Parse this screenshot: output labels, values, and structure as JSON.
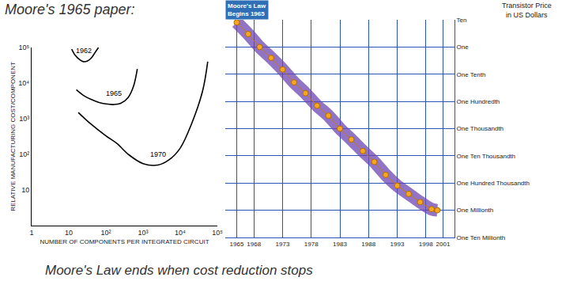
{
  "chart_data": [
    {
      "type": "line",
      "title": "Moore's 1965 paper:",
      "xlabel": "NUMBER OF COMPONENTS PER INTEGRATED CIRCUIT",
      "ylabel": "RELATIVE MANUFACTURING COST/COMPONENT",
      "log": true,
      "grid": false,
      "line_style": "solid",
      "xlim": [
        1,
        100000
      ],
      "ylim": [
        1,
        100000
      ],
      "xticks": [
        1,
        10,
        {
          "value": 100,
          "label": "10²"
        },
        {
          "value": 1000,
          "label": "10³"
        },
        {
          "value": 10000,
          "label": "10⁴"
        },
        {
          "value": 100000,
          "label": "10⁵"
        }
      ],
      "yticks": [
        10,
        {
          "value": 100,
          "label": "10²"
        },
        {
          "value": 1000,
          "label": "10³"
        },
        {
          "value": 10000,
          "label": "10⁴"
        },
        {
          "value": 100000,
          "label": "10⁵"
        }
      ],
      "series": [
        {
          "name": "1962",
          "color": "#000000",
          "x": [
            12,
            15,
            20,
            25,
            32,
            40,
            50,
            63
          ],
          "values": [
            90000,
            60000,
            45000,
            40000,
            42000,
            50000,
            70000,
            100000
          ]
        },
        {
          "name": "1965",
          "color": "#000000",
          "x": [
            16,
            25,
            40,
            63,
            100,
            160,
            250,
            400,
            550,
            700
          ],
          "values": [
            6500,
            4500,
            3500,
            2900,
            2600,
            2500,
            2700,
            4000,
            8000,
            25000
          ]
        },
        {
          "name": "1970",
          "color": "#000000",
          "x": [
            18,
            40,
            100,
            200,
            400,
            1000,
            2500,
            5000,
            10000,
            20000,
            40000,
            55000
          ],
          "values": [
            1500,
            700,
            330,
            200,
            100,
            55,
            50,
            70,
            150,
            700,
            6000,
            40000
          ]
        }
      ]
    },
    {
      "type": "line",
      "title": "Moore's Law\nBegins 1965",
      "ylabel": "Transistor Price\nin US Dollars",
      "log": "y",
      "grid": true,
      "marker": "circle",
      "line_style": "solid",
      "xlim": [
        1963,
        2003
      ],
      "ylim": [
        1e-07,
        10
      ],
      "xticks": [
        1965,
        1968,
        1973,
        1978,
        1983,
        1988,
        1993,
        1998,
        2001
      ],
      "yticks": [
        {
          "value": 10,
          "label": "Ten"
        },
        {
          "value": 1,
          "label": "One"
        },
        {
          "value": 0.1,
          "label": "One Tenth"
        },
        {
          "value": 0.01,
          "label": "One Hundredth"
        },
        {
          "value": 0.001,
          "label": "One Thousandth"
        },
        {
          "value": 0.0001,
          "label": "One Ten Thousandth"
        },
        {
          "value": 1e-05,
          "label": "One Hundred Thousandth"
        },
        {
          "value": 1e-06,
          "label": "One Millionth"
        },
        {
          "value": 1e-07,
          "label": "One Ten Millionth"
        }
      ],
      "series": [
        {
          "color": "#f5a623",
          "x": [
            1965,
            1967,
            1969,
            1971,
            1973,
            1975,
            1977,
            1979,
            1981,
            1983,
            1985,
            1987,
            1989,
            1991,
            1993,
            1995,
            1997,
            1999,
            2000
          ],
          "values": [
            8,
            3,
            1,
            0.4,
            0.15,
            0.05,
            0.02,
            0.007,
            0.003,
            0.001,
            0.0004,
            0.00015,
            6e-05,
            2e-05,
            8e-06,
            4e-06,
            2e-06,
            1.1e-06,
            1e-06
          ]
        }
      ]
    }
  ],
  "caption": "Moore's Law ends when cost reduction stops"
}
